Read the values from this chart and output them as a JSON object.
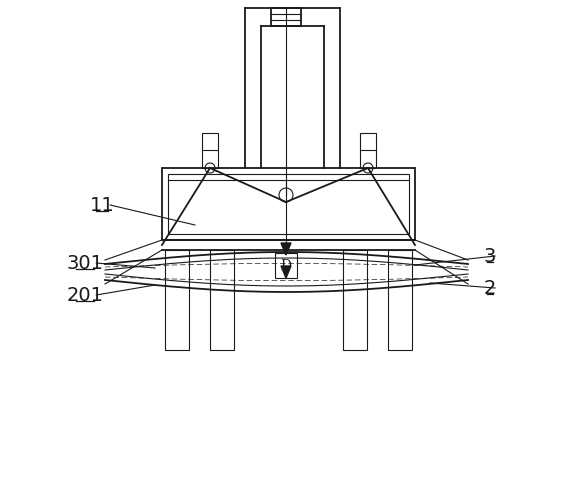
{
  "bg_color": "#ffffff",
  "line_color": "#1a1a1a",
  "line_width": 1.3,
  "thin_line": 0.8,
  "fig_width": 5.73,
  "fig_height": 4.94,
  "label_fontsize": 14
}
